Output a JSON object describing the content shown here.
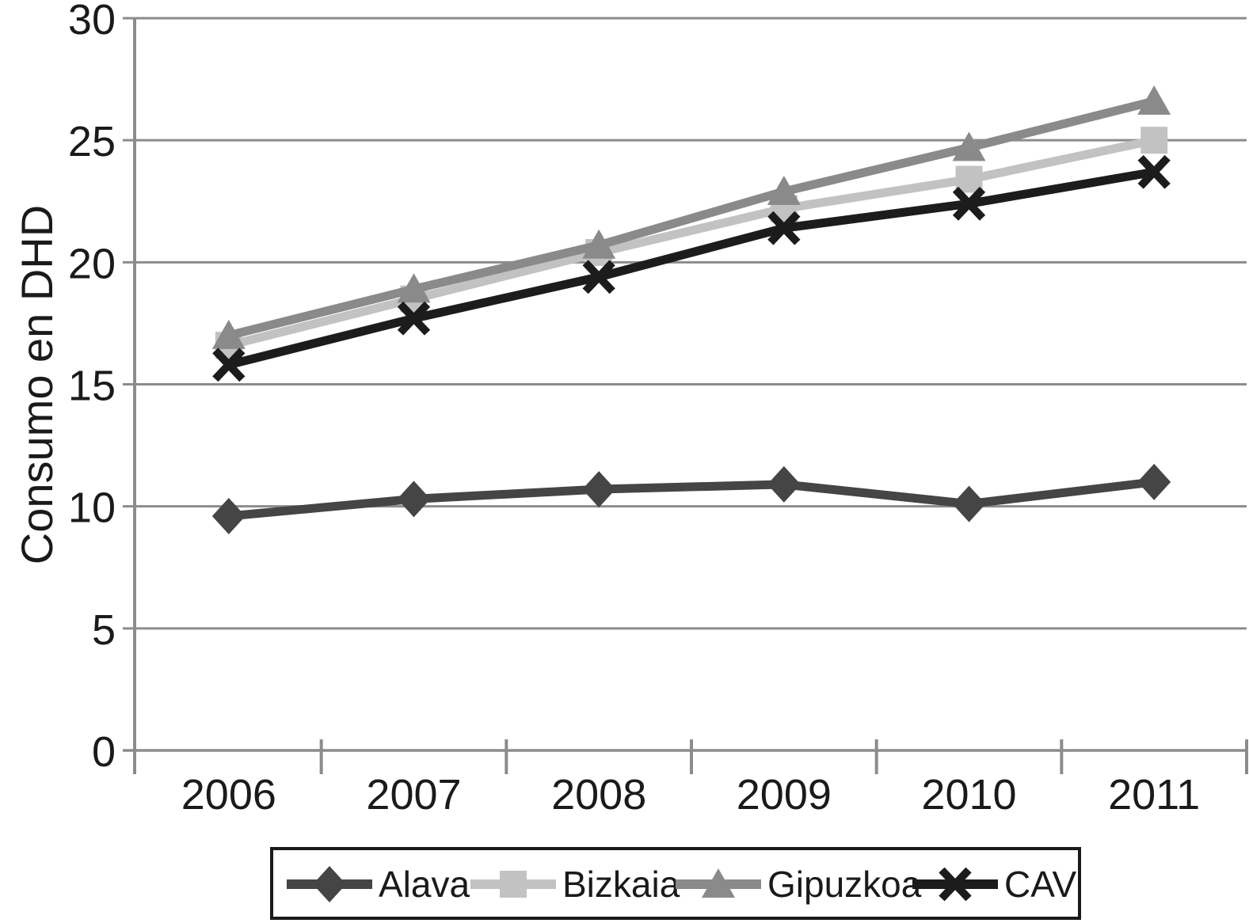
{
  "chart_data": {
    "type": "line",
    "title": "",
    "xlabel": "",
    "ylabel": "Consumo en DHD",
    "categories": [
      "2006",
      "2007",
      "2008",
      "2009",
      "2010",
      "2011"
    ],
    "ylim": [
      0,
      30
    ],
    "yticks": [
      0,
      5,
      10,
      15,
      20,
      25,
      30
    ],
    "grid": "horizontal",
    "legend_position": "bottom",
    "series": [
      {
        "name": "Alava",
        "marker": "diamond",
        "color": "#454545",
        "values": [
          9.6,
          10.3,
          10.7,
          10.9,
          10.1,
          11.0
        ]
      },
      {
        "name": "Bizkaia",
        "marker": "square",
        "color": "#c2c2c2",
        "values": [
          16.6,
          18.5,
          20.4,
          22.2,
          23.4,
          25.0
        ]
      },
      {
        "name": "Gipuzkoa",
        "marker": "triangle",
        "color": "#8a8a8a",
        "values": [
          17.0,
          18.9,
          20.7,
          22.9,
          24.7,
          26.6
        ]
      },
      {
        "name": "CAV",
        "marker": "x",
        "color": "#1c1c1c",
        "values": [
          15.8,
          17.7,
          19.4,
          21.4,
          22.4,
          23.7
        ]
      }
    ],
    "colors": {
      "background": "#ffffff",
      "gridline": "#8c8c8c",
      "axis": "#8c8c8c",
      "text": "#1a1a1a",
      "legend_border": "#1a1a1a",
      "legend_background": "#ffffff"
    }
  }
}
